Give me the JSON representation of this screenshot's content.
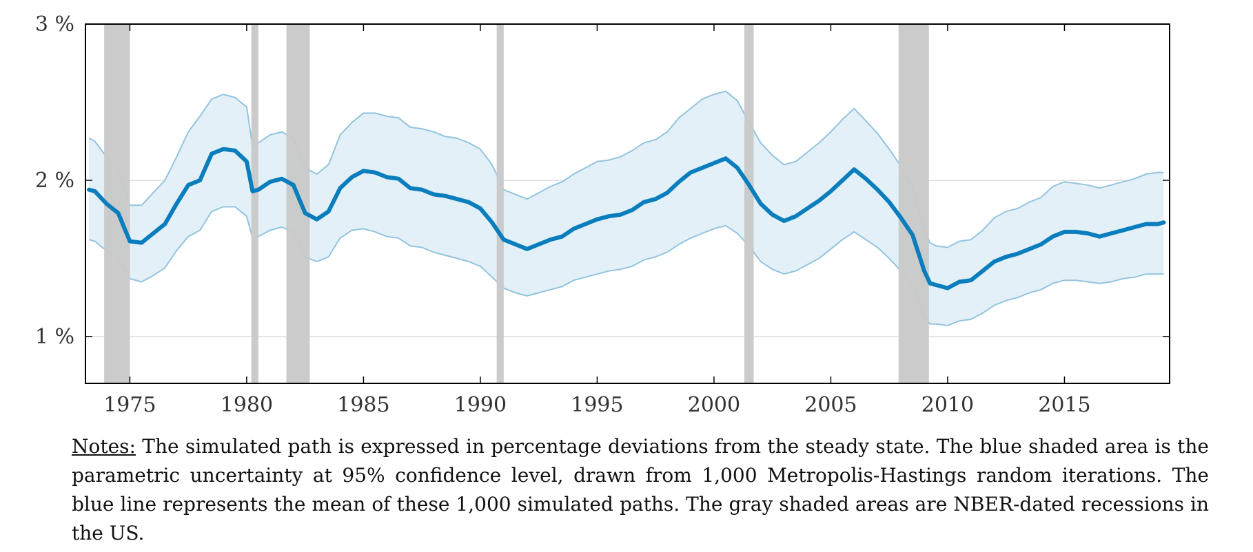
{
  "chart_data": {
    "type": "area",
    "title": "",
    "xlabel": "",
    "ylabel": "",
    "xlim": [
      1973.1,
      2019.5
    ],
    "ylim": [
      0.7,
      3.0
    ],
    "y_ticks": [
      {
        "value": 1,
        "label": "1 %"
      },
      {
        "value": 2,
        "label": "2 %"
      },
      {
        "value": 3,
        "label": "3 %"
      }
    ],
    "x_ticks": [
      {
        "value": 1975,
        "label": "1975"
      },
      {
        "value": 1980,
        "label": "1980"
      },
      {
        "value": 1985,
        "label": "1985"
      },
      {
        "value": 1990,
        "label": "1990"
      },
      {
        "value": 1995,
        "label": "1995"
      },
      {
        "value": 2000,
        "label": "2000"
      },
      {
        "value": 2005,
        "label": "2005"
      },
      {
        "value": 2010,
        "label": "2010"
      },
      {
        "value": 2015,
        "label": "2015"
      }
    ],
    "grid": "horizontal",
    "colors": {
      "mean_line": "#0a7dbd",
      "band_fill": "#e3f0f8",
      "band_edge": "#93c4de",
      "recession": "#c8c8c8",
      "grid": "#dddddd",
      "frame": "#000000"
    },
    "recessions": [
      [
        1973.9,
        1975.0
      ],
      [
        1980.2,
        1980.5
      ],
      [
        1981.7,
        1982.7
      ],
      [
        1990.7,
        1991.0
      ],
      [
        2001.3,
        2001.7
      ],
      [
        2007.9,
        2009.2
      ]
    ],
    "x": [
      1973.25,
      1973.5,
      1974.0,
      1974.5,
      1975.0,
      1975.5,
      1976.0,
      1976.5,
      1977.0,
      1977.5,
      1978.0,
      1978.5,
      1979.0,
      1979.5,
      1980.0,
      1980.25,
      1980.5,
      1981.0,
      1981.5,
      1982.0,
      1982.5,
      1983.0,
      1983.5,
      1984.0,
      1984.5,
      1985.0,
      1985.5,
      1986.0,
      1986.5,
      1987.0,
      1987.5,
      1988.0,
      1988.5,
      1989.0,
      1989.5,
      1990.0,
      1990.5,
      1991.0,
      1991.5,
      1992.0,
      1992.5,
      1993.0,
      1993.5,
      1994.0,
      1994.5,
      1995.0,
      1995.5,
      1996.0,
      1996.5,
      1997.0,
      1997.5,
      1998.0,
      1998.5,
      1999.0,
      1999.5,
      2000.0,
      2000.5,
      2001.0,
      2001.5,
      2002.0,
      2002.5,
      2003.0,
      2003.5,
      2004.0,
      2004.5,
      2005.0,
      2005.5,
      2006.0,
      2006.5,
      2007.0,
      2007.5,
      2008.0,
      2008.5,
      2009.0,
      2009.25,
      2009.5,
      2010.0,
      2010.5,
      2011.0,
      2011.5,
      2012.0,
      2012.5,
      2013.0,
      2013.5,
      2014.0,
      2014.5,
      2015.0,
      2015.5,
      2016.0,
      2016.5,
      2017.0,
      2017.5,
      2018.0,
      2018.5,
      2019.0,
      2019.25
    ],
    "series": [
      {
        "role": "mean",
        "values": [
          1.94,
          1.93,
          1.85,
          1.79,
          1.61,
          1.6,
          1.66,
          1.72,
          1.85,
          1.97,
          2.0,
          2.17,
          2.2,
          2.19,
          2.12,
          1.93,
          1.94,
          1.99,
          2.01,
          1.97,
          1.79,
          1.75,
          1.8,
          1.95,
          2.02,
          2.06,
          2.05,
          2.02,
          2.01,
          1.95,
          1.94,
          1.91,
          1.9,
          1.88,
          1.86,
          1.82,
          1.73,
          1.62,
          1.59,
          1.56,
          1.59,
          1.62,
          1.64,
          1.69,
          1.72,
          1.75,
          1.77,
          1.78,
          1.81,
          1.86,
          1.88,
          1.92,
          1.99,
          2.05,
          2.08,
          2.11,
          2.14,
          2.08,
          1.97,
          1.85,
          1.78,
          1.74,
          1.77,
          1.82,
          1.87,
          1.93,
          2.0,
          2.07,
          2.01,
          1.94,
          1.86,
          1.76,
          1.65,
          1.42,
          1.34,
          1.33,
          1.31,
          1.35,
          1.36,
          1.42,
          1.48,
          1.51,
          1.53,
          1.56,
          1.59,
          1.64,
          1.67,
          1.67,
          1.66,
          1.64,
          1.66,
          1.68,
          1.7,
          1.72,
          1.72,
          1.73
        ]
      },
      {
        "role": "upper_95",
        "values": [
          2.27,
          2.25,
          2.15,
          2.07,
          1.84,
          1.84,
          1.92,
          2.0,
          2.15,
          2.31,
          2.41,
          2.52,
          2.55,
          2.53,
          2.47,
          2.22,
          2.24,
          2.29,
          2.31,
          2.27,
          2.08,
          2.04,
          2.1,
          2.29,
          2.37,
          2.43,
          2.43,
          2.41,
          2.4,
          2.34,
          2.33,
          2.31,
          2.28,
          2.27,
          2.24,
          2.2,
          2.1,
          1.94,
          1.91,
          1.88,
          1.92,
          1.96,
          1.99,
          2.04,
          2.08,
          2.12,
          2.13,
          2.15,
          2.19,
          2.24,
          2.26,
          2.31,
          2.4,
          2.46,
          2.52,
          2.55,
          2.57,
          2.51,
          2.37,
          2.24,
          2.16,
          2.1,
          2.12,
          2.18,
          2.24,
          2.31,
          2.39,
          2.46,
          2.38,
          2.3,
          2.2,
          2.09,
          1.96,
          1.68,
          1.6,
          1.58,
          1.57,
          1.61,
          1.62,
          1.68,
          1.76,
          1.8,
          1.82,
          1.86,
          1.89,
          1.96,
          1.99,
          1.98,
          1.97,
          1.95,
          1.97,
          1.99,
          2.01,
          2.04,
          2.05,
          2.05
        ]
      },
      {
        "role": "lower_95",
        "values": [
          1.62,
          1.61,
          1.55,
          1.5,
          1.37,
          1.35,
          1.39,
          1.44,
          1.55,
          1.64,
          1.68,
          1.8,
          1.83,
          1.83,
          1.77,
          1.63,
          1.64,
          1.68,
          1.7,
          1.67,
          1.51,
          1.48,
          1.51,
          1.63,
          1.68,
          1.69,
          1.67,
          1.64,
          1.63,
          1.58,
          1.57,
          1.54,
          1.52,
          1.5,
          1.48,
          1.45,
          1.38,
          1.31,
          1.28,
          1.26,
          1.28,
          1.3,
          1.32,
          1.36,
          1.38,
          1.4,
          1.42,
          1.43,
          1.45,
          1.49,
          1.51,
          1.54,
          1.59,
          1.63,
          1.66,
          1.69,
          1.71,
          1.66,
          1.58,
          1.48,
          1.43,
          1.4,
          1.42,
          1.46,
          1.5,
          1.56,
          1.62,
          1.67,
          1.62,
          1.57,
          1.5,
          1.42,
          1.33,
          1.13,
          1.08,
          1.08,
          1.07,
          1.1,
          1.11,
          1.15,
          1.2,
          1.23,
          1.25,
          1.28,
          1.3,
          1.34,
          1.36,
          1.36,
          1.35,
          1.34,
          1.35,
          1.37,
          1.38,
          1.4,
          1.4,
          1.4
        ]
      }
    ]
  },
  "notes": {
    "label": "Notes:",
    "text": " The simulated path is expressed in percentage deviations from the steady state.  The blue shaded area is the parametric uncertainty at 95% confidence level, drawn from 1,000 Metropolis-Hastings random iterations.  The blue line represents the mean of these 1,000 simulated paths.  The gray shaded areas are NBER-dated recessions in the US."
  }
}
